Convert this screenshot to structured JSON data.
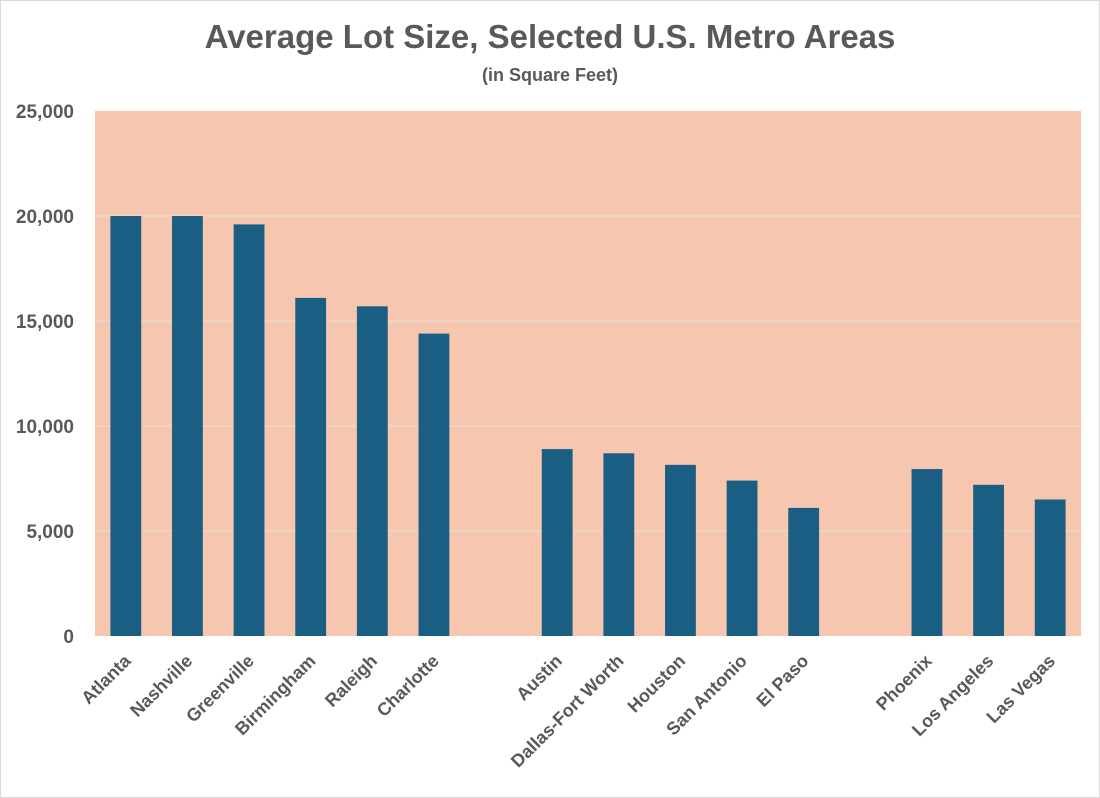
{
  "chart_data": {
    "type": "bar",
    "title": "Average Lot Size, Selected U.S. Metro Areas",
    "subtitle": "(in Square Feet)",
    "xlabel": "",
    "ylabel": "",
    "ylim": [
      0,
      25000
    ],
    "yticks": [
      0,
      5000,
      10000,
      15000,
      20000,
      25000
    ],
    "ytick_labels": [
      "0",
      "5,000",
      "10,000",
      "15,000",
      "20,000",
      "25,000"
    ],
    "grid": true,
    "legend": "none",
    "categories": [
      "Atlanta",
      "Nashville",
      "Greenville",
      "Birmingham",
      "Raleigh",
      "Charlotte",
      "",
      "Austin",
      "Dallas-Fort Worth",
      "Houston",
      "San Antonio",
      "El Paso",
      "",
      "Phoenix",
      "Los Angeles",
      "Las Vegas"
    ],
    "values": [
      20000,
      20000,
      19600,
      16100,
      15700,
      14400,
      null,
      8900,
      8700,
      8150,
      7400,
      6100,
      null,
      7950,
      7200,
      6500
    ],
    "colors": {
      "bar": "#1a5f83",
      "plot_background": "#f6c7ae",
      "grid": "#e8e0dc",
      "text": "#595959"
    }
  }
}
